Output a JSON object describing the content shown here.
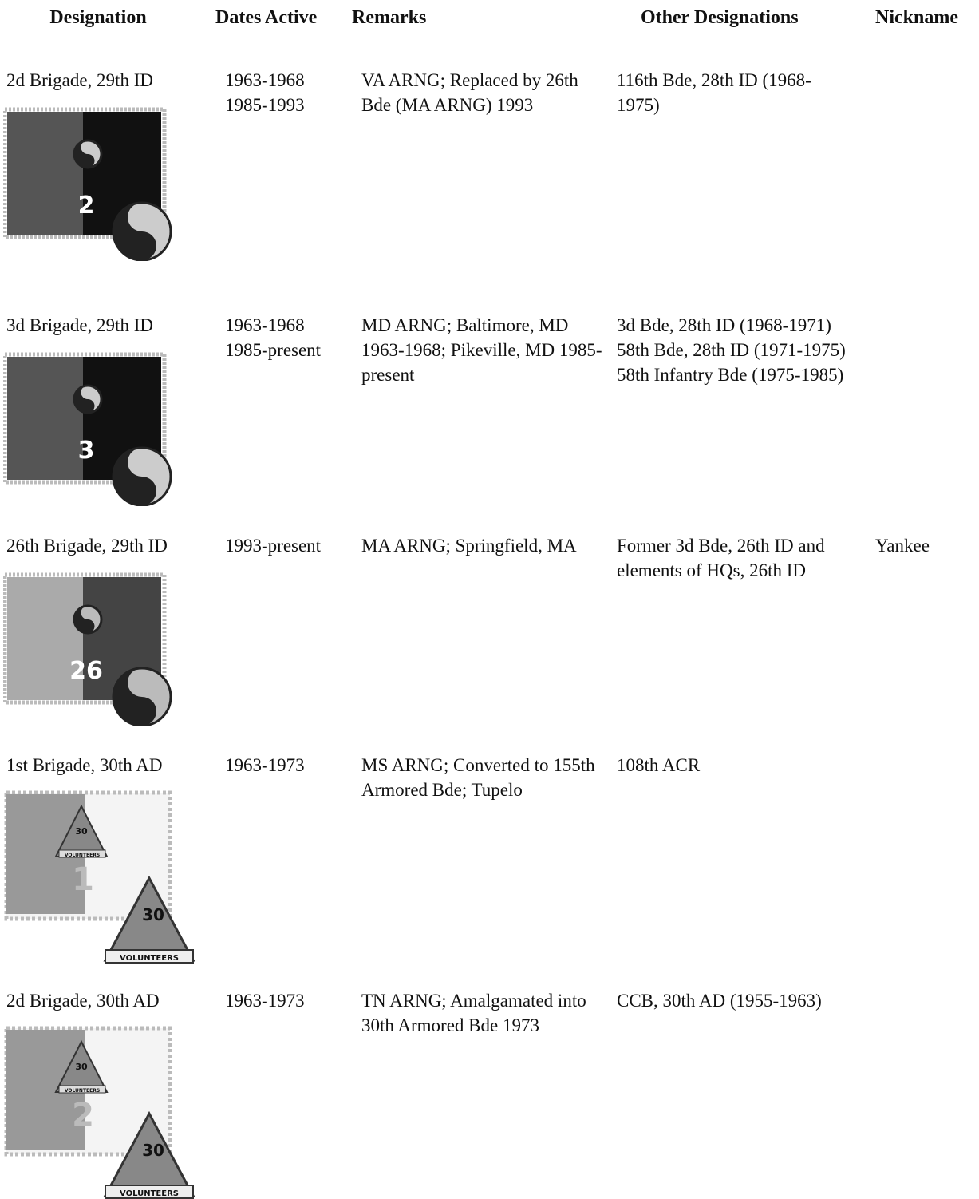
{
  "headers": [
    "Designation",
    "Dates Active",
    "Remarks",
    "Other Designations",
    "Nickname"
  ],
  "rows": [
    {
      "designation": "2d Brigade, 29th ID",
      "dates_active": [
        "1963-1968",
        "1985-1993"
      ],
      "remarks": "VA ARNG; Replaced by 26th Bde (MA ARNG) 1993",
      "other_designations": [
        "116th Bde, 28th ID (1968-1975)"
      ],
      "insignia": {
        "number": "2"
      }
    },
    {
      "designation": "3d Brigade, 29th ID",
      "dates_active": [
        "1963-1968",
        "1985-present"
      ],
      "remarks": "MD ARNG; Baltimore, MD 1963-1968; Pikeville, MD 1985-present",
      "other_designations": [
        "3d Bde, 28th ID (1968-1971)",
        "58th Bde, 28th ID (1971-1975)",
        "58th Infantry Bde (1975-1985)"
      ],
      "insignia": {
        "number": "3"
      }
    },
    {
      "designation": "26th Brigade, 29th ID",
      "dates_active": [
        "1993-present"
      ],
      "remarks": "MA ARNG; Springfield, MA",
      "other_designations": [
        "Former 3d Bde, 26th ID and elements of HQs, 26th ID"
      ],
      "nickname": "Yankee",
      "insignia": {
        "number": "26"
      }
    },
    {
      "designation": "1st Brigade, 30th AD",
      "dates_active": [
        "1963-1973"
      ],
      "remarks": "MS ARNG; Converted to 155th Armored Bde; Tupelo",
      "other_designations": [
        "108th ACR"
      ],
      "insignia": {
        "number": "1",
        "division": "30",
        "motto": "VOLUNTEERS"
      }
    },
    {
      "designation": "2d Brigade, 30th AD",
      "dates_active": [
        "1963-1973"
      ],
      "remarks": "TN ARNG; Amalgamated into 30th Armored Bde 1973",
      "other_designations": [
        "CCB, 30th AD (1955-1963)"
      ],
      "insignia": {
        "number": "2",
        "division": "30",
        "motto": "VOLUNTEERS"
      }
    }
  ]
}
